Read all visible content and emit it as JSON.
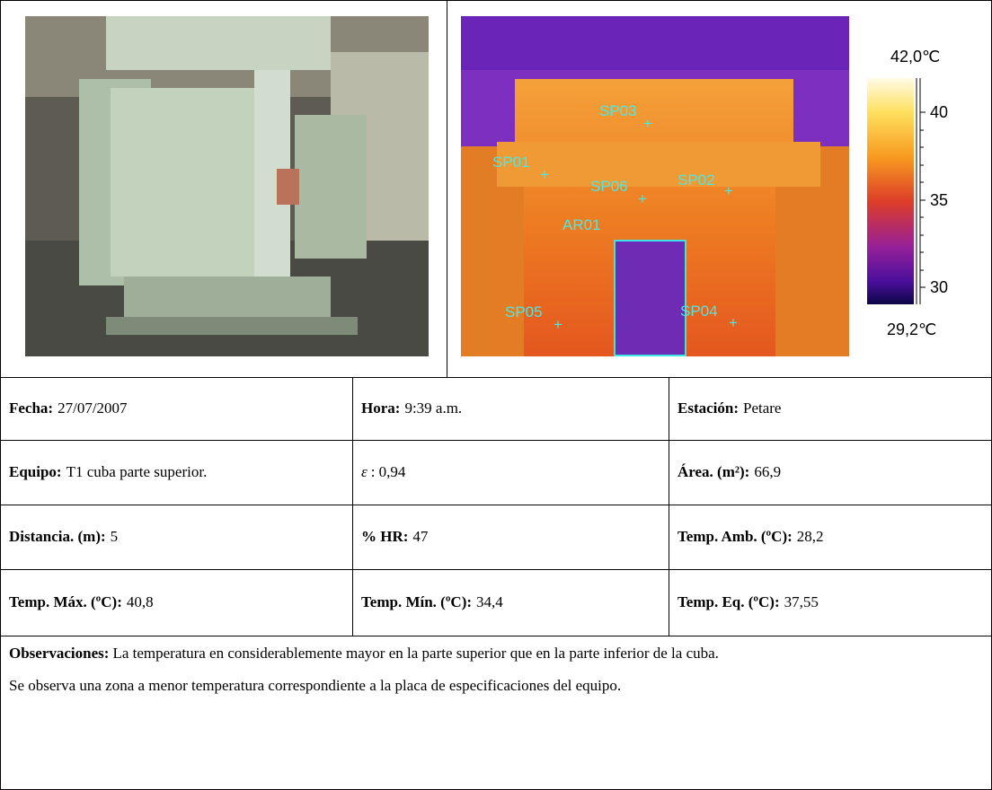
{
  "thermal": {
    "markers": [
      "SP03",
      "SP01",
      "SP06",
      "SP02",
      "SP05",
      "SP04"
    ],
    "area_label": "AR01",
    "scale": {
      "max": "42,0℃",
      "ticks": [
        "40",
        "35",
        "30"
      ],
      "min": "29,2℃"
    }
  },
  "table": {
    "rows": [
      [
        {
          "label": "Fecha:",
          "value": "27/07/2007"
        },
        {
          "label": "Hora:",
          "value": "9:39 a.m."
        },
        {
          "label": "Estación:",
          "value": "Petare"
        }
      ],
      [
        {
          "label": "Equipo:",
          "value": "T1 cuba parte superior."
        },
        {
          "label": "ε",
          "value": ": 0,94"
        },
        {
          "label": "Área. (m²):",
          "value": "66,9"
        }
      ],
      [
        {
          "label": "Distancia. (m):",
          "value": "5"
        },
        {
          "label": "% HR:",
          "value": "47"
        },
        {
          "label": "Temp. Amb. (ºC):",
          "value": "28,2"
        }
      ],
      [
        {
          "label": "Temp. Máx. (ºC):",
          "value": "40,8"
        },
        {
          "label": "Temp. Mín. (ºC):",
          "value": "34,4"
        },
        {
          "label": "Temp. Eq. (ºC):",
          "value": "37,55"
        }
      ]
    ]
  },
  "observations": {
    "label": "Observaciones:",
    "text": "La temperatura en considerablemente mayor en la parte superior que en la parte inferior de la cuba.",
    "note": "Se observa una zona a menor temperatura correspondiente a la placa de especificaciones del equipo."
  }
}
